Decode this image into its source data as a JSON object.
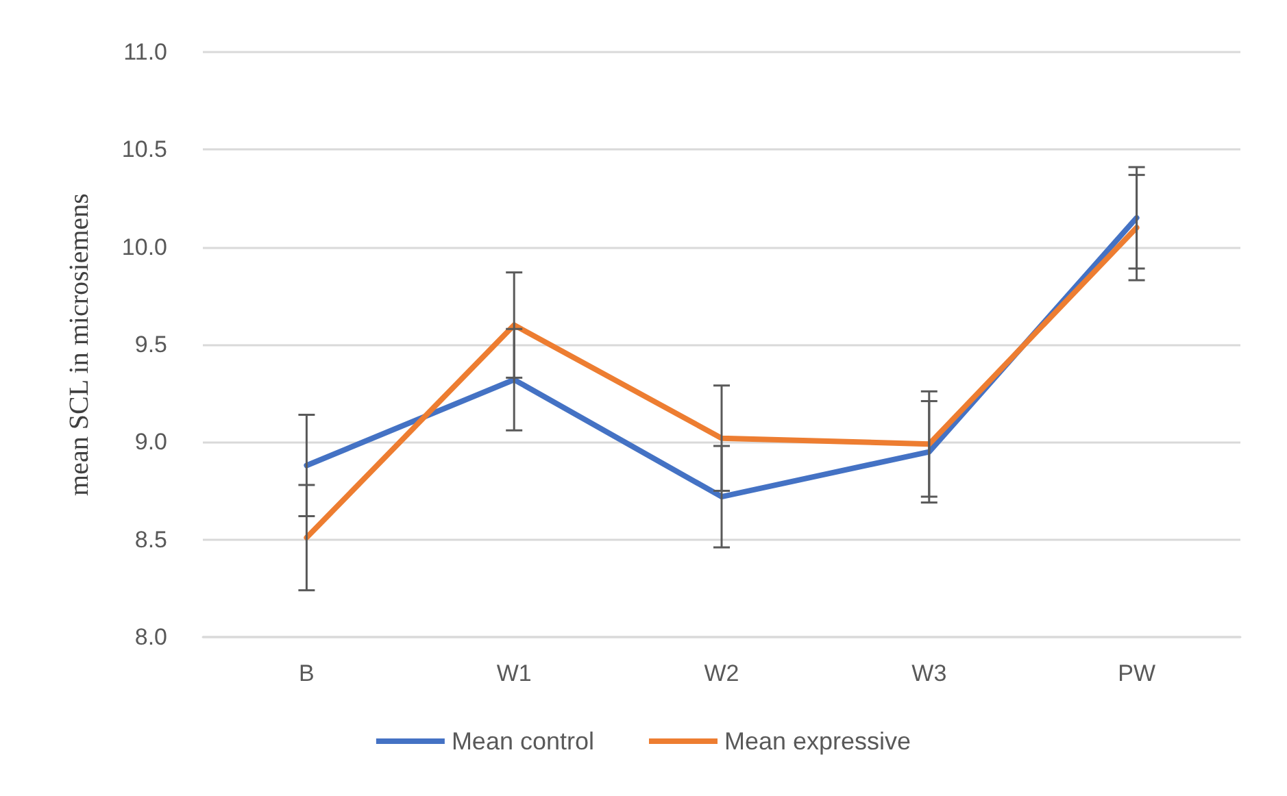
{
  "chart_data": {
    "type": "line",
    "ylabel": "mean SCL in microsiemens",
    "categories": [
      "B",
      "W1",
      "W2",
      "W3",
      "PW"
    ],
    "series": [
      {
        "name": "Mean control",
        "color": "#4472c4",
        "values": [
          8.88,
          9.32,
          8.72,
          8.95,
          10.15
        ],
        "errors": [
          0.26,
          0.26,
          0.26,
          0.26,
          0.26
        ]
      },
      {
        "name": "Mean expressive",
        "color": "#ed7d31",
        "values": [
          8.51,
          9.6,
          9.02,
          8.99,
          10.1
        ],
        "errors": [
          0.27,
          0.27,
          0.27,
          0.27,
          0.27
        ]
      }
    ],
    "ylim": [
      8.0,
      11.0
    ],
    "yticks": [
      {
        "value": 8,
        "label": "8.0"
      },
      8.5,
      {
        "value": 9,
        "label": "9.0"
      },
      9.5,
      {
        "value": 10,
        "label": "10.0"
      },
      10.5,
      {
        "value": 11,
        "label": "11.0"
      }
    ],
    "grid": "y",
    "legend": "bottom",
    "marker": "none",
    "line_style": "solid"
  }
}
